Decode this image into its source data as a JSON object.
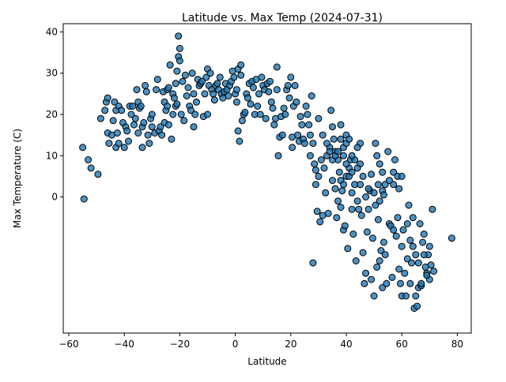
{
  "chart_data": {
    "type": "scatter",
    "title": "Latitude vs. Max Temp (2024-07-31)",
    "xlabel": "Latitude",
    "ylabel": "Max Temperature (C)",
    "xlim": [
      -62,
      85
    ],
    "ylim": [
      -33,
      42
    ],
    "xticks": [
      -60,
      -40,
      -20,
      0,
      20,
      40,
      60,
      80
    ],
    "yticks": [
      0,
      10,
      20,
      30,
      40
    ],
    "grid": false,
    "legend": "none",
    "marker_color": "#1f77b4",
    "marker_edge_color": "#000000",
    "points": [
      [
        -55,
        12
      ],
      [
        -54.5,
        -0.5
      ],
      [
        -53,
        9
      ],
      [
        -52,
        7
      ],
      [
        -49.5,
        5.5
      ],
      [
        -48.5,
        19
      ],
      [
        -47,
        21
      ],
      [
        -46.5,
        23
      ],
      [
        -46,
        24
      ],
      [
        -46,
        15.5
      ],
      [
        -45.5,
        13
      ],
      [
        -44.5,
        15
      ],
      [
        -44,
        18.5
      ],
      [
        -43.5,
        23
      ],
      [
        -43,
        21
      ],
      [
        -43,
        12
      ],
      [
        -42.5,
        15.5
      ],
      [
        -42,
        22
      ],
      [
        -42,
        13
      ],
      [
        -41,
        21
      ],
      [
        -40.5,
        18
      ],
      [
        -40,
        12
      ],
      [
        -39.5,
        17
      ],
      [
        -39,
        16
      ],
      [
        -38.5,
        13.5
      ],
      [
        -38,
        22
      ],
      [
        -37.5,
        20
      ],
      [
        -37,
        22
      ],
      [
        -36.5,
        17.5
      ],
      [
        -36,
        19
      ],
      [
        -35.5,
        26
      ],
      [
        -35,
        23
      ],
      [
        -35,
        15.5
      ],
      [
        -34.5,
        21.5
      ],
      [
        -34,
        22
      ],
      [
        -33.5,
        17
      ],
      [
        -33.5,
        12
      ],
      [
        -33,
        18
      ],
      [
        -32.5,
        27
      ],
      [
        -32,
        25.5
      ],
      [
        -31.5,
        15
      ],
      [
        -31,
        13
      ],
      [
        -30.5,
        19
      ],
      [
        -30,
        17
      ],
      [
        -30,
        20
      ],
      [
        -29,
        15.5
      ],
      [
        -28.5,
        26
      ],
      [
        -28,
        28.5
      ],
      [
        -27.5,
        16
      ],
      [
        -27,
        17
      ],
      [
        -26.5,
        15
      ],
      [
        -26,
        25.5
      ],
      [
        -25.5,
        23
      ],
      [
        -25.5,
        18
      ],
      [
        -25,
        21
      ],
      [
        -24.5,
        22
      ],
      [
        -24.5,
        26
      ],
      [
        -24,
        17.5
      ],
      [
        -24,
        26.5
      ],
      [
        -23.5,
        32
      ],
      [
        -23,
        14
      ],
      [
        -22.5,
        20
      ],
      [
        -22.5,
        25
      ],
      [
        -22,
        24
      ],
      [
        -21.5,
        22
      ],
      [
        -21.5,
        27.5
      ],
      [
        -21,
        22.5
      ],
      [
        -21,
        30.5
      ],
      [
        -20.5,
        34
      ],
      [
        -20.5,
        39
      ],
      [
        -20,
        36
      ],
      [
        -20,
        33
      ],
      [
        -19.5,
        20
      ],
      [
        -19,
        28
      ],
      [
        -18.5,
        18.5
      ],
      [
        -18,
        29.5
      ],
      [
        -17.5,
        24.5
      ],
      [
        -17,
        26.5
      ],
      [
        -16.5,
        22
      ],
      [
        -16,
        21
      ],
      [
        -15.5,
        30
      ],
      [
        -15,
        25
      ],
      [
        -15,
        17
      ],
      [
        -14.5,
        20
      ],
      [
        -14,
        23
      ],
      [
        -13.5,
        28.5
      ],
      [
        -13,
        27
      ],
      [
        -12.5,
        27.5
      ],
      [
        -12,
        28
      ],
      [
        -11.5,
        19.5
      ],
      [
        -11,
        25
      ],
      [
        -10.5,
        29
      ],
      [
        -10,
        31
      ],
      [
        -10,
        20
      ],
      [
        -9.5,
        27
      ],
      [
        -9,
        30
      ],
      [
        -8.5,
        26
      ],
      [
        -8,
        25
      ],
      [
        -7.5,
        23.5
      ],
      [
        -7,
        27
      ],
      [
        -6.5,
        27.5
      ],
      [
        -6,
        26
      ],
      [
        -5.5,
        29
      ],
      [
        -5,
        25
      ],
      [
        -4.5,
        24
      ],
      [
        -4,
        25.5
      ],
      [
        -3.5,
        27.5
      ],
      [
        -3,
        26
      ],
      [
        -2.5,
        24.5
      ],
      [
        -2,
        27
      ],
      [
        -1.5,
        28
      ],
      [
        -1,
        30.5
      ],
      [
        -0.5,
        29
      ],
      [
        0,
        25
      ],
      [
        0.5,
        26
      ],
      [
        0.5,
        23
      ],
      [
        1,
        31
      ],
      [
        1,
        16
      ],
      [
        1.5,
        13.5
      ],
      [
        2,
        32
      ],
      [
        2,
        29.5
      ],
      [
        2.5,
        18.5
      ],
      [
        3,
        20
      ],
      [
        3.5,
        20.5
      ],
      [
        4,
        25
      ],
      [
        4.5,
        24
      ],
      [
        5,
        27.5
      ],
      [
        5.5,
        22.5
      ],
      [
        6,
        28
      ],
      [
        6.5,
        26.5
      ],
      [
        7,
        20
      ],
      [
        7.5,
        28.5
      ],
      [
        8,
        22
      ],
      [
        8.5,
        25
      ],
      [
        9,
        20
      ],
      [
        9.5,
        29
      ],
      [
        10,
        27
      ],
      [
        10.5,
        26
      ],
      [
        11,
        19
      ],
      [
        11.5,
        27.5
      ],
      [
        12,
        25.5
      ],
      [
        12.5,
        28
      ],
      [
        13,
        23
      ],
      [
        13.5,
        21.5
      ],
      [
        14,
        17.5
      ],
      [
        14.5,
        19
      ],
      [
        15,
        26
      ],
      [
        15,
        31.5
      ],
      [
        15.5,
        10
      ],
      [
        16,
        14.5
      ],
      [
        16.5,
        19.5
      ],
      [
        17,
        15
      ],
      [
        17.5,
        21.5
      ],
      [
        18,
        20
      ],
      [
        18.5,
        26
      ],
      [
        19,
        27
      ],
      [
        19.5,
        24
      ],
      [
        20,
        29
      ],
      [
        20.5,
        12
      ],
      [
        20.5,
        14.5
      ],
      [
        21,
        22
      ],
      [
        21.5,
        27
      ],
      [
        22,
        23
      ],
      [
        22.5,
        15
      ],
      [
        23,
        13.5
      ],
      [
        23.5,
        19.5
      ],
      [
        24,
        17.5
      ],
      [
        24.5,
        14
      ],
      [
        25,
        13
      ],
      [
        25.5,
        22
      ],
      [
        26,
        20
      ],
      [
        26.5,
        17.5
      ],
      [
        27,
        15
      ],
      [
        27,
        10
      ],
      [
        27.5,
        24.5
      ],
      [
        28,
        13
      ],
      [
        28,
        -16
      ],
      [
        28.5,
        8
      ],
      [
        29,
        6.5
      ],
      [
        29,
        3
      ],
      [
        29.5,
        -3.5
      ],
      [
        30,
        5
      ],
      [
        30,
        19
      ],
      [
        30.5,
        -6
      ],
      [
        31,
        9
      ],
      [
        31.5,
        15
      ],
      [
        31.5,
        -4.5
      ],
      [
        32,
        7
      ],
      [
        32.5,
        1
      ],
      [
        33,
        10
      ],
      [
        33.5,
        -4
      ],
      [
        34,
        12
      ],
      [
        34.5,
        21
      ],
      [
        35,
        17
      ],
      [
        35.5,
        14
      ],
      [
        36,
        11
      ],
      [
        36.5,
        -5
      ],
      [
        37,
        9
      ],
      [
        37.5,
        6
      ],
      [
        38,
        17.5
      ],
      [
        38,
        -2.5
      ],
      [
        38.5,
        1.5
      ],
      [
        39,
        12
      ],
      [
        39,
        -8
      ],
      [
        39.5,
        -7
      ],
      [
        40,
        5
      ],
      [
        40,
        13
      ],
      [
        40.5,
        -12.5
      ],
      [
        41,
        7
      ],
      [
        41.5,
        9
      ],
      [
        42,
        -3
      ],
      [
        42,
        1
      ],
      [
        42.5,
        -9
      ],
      [
        43,
        3
      ],
      [
        43.5,
        -15.5
      ],
      [
        44,
        -1
      ],
      [
        44.5,
        -3
      ],
      [
        45,
        8
      ],
      [
        45,
        13
      ],
      [
        45.5,
        -4.5
      ],
      [
        46,
        -13.5
      ],
      [
        46.5,
        -21
      ],
      [
        47,
        -18.5
      ],
      [
        47.5,
        -8.5
      ],
      [
        48,
        -3
      ],
      [
        48.5,
        1.5
      ],
      [
        49,
        -20
      ],
      [
        49,
        5.5
      ],
      [
        49.5,
        -10
      ],
      [
        50,
        -24
      ],
      [
        50.5,
        13
      ],
      [
        51,
        -17
      ],
      [
        51,
        10
      ],
      [
        51.5,
        -5.5
      ],
      [
        52,
        -15.5
      ],
      [
        52.5,
        -13
      ],
      [
        53,
        1.5
      ],
      [
        53,
        -22
      ],
      [
        53.5,
        -11
      ],
      [
        54,
        -14
      ],
      [
        54.5,
        -21
      ],
      [
        55,
        11
      ],
      [
        55.5,
        -6.5
      ],
      [
        56,
        -7
      ],
      [
        56.5,
        -19.5
      ],
      [
        57,
        -8
      ],
      [
        57,
        3
      ],
      [
        57.5,
        9
      ],
      [
        58,
        -9.5
      ],
      [
        58.5,
        -5
      ],
      [
        59,
        -17.5
      ],
      [
        59.5,
        -21
      ],
      [
        60,
        -24
      ],
      [
        60.5,
        -8
      ],
      [
        61,
        -18.5
      ],
      [
        61.5,
        -24
      ],
      [
        62,
        -6.5
      ],
      [
        62.5,
        -2
      ],
      [
        63,
        -10.5
      ],
      [
        63.5,
        -16
      ],
      [
        64,
        -5
      ],
      [
        64.5,
        -27
      ],
      [
        65,
        -14
      ],
      [
        65.5,
        -26.5
      ],
      [
        66,
        -22
      ],
      [
        66.5,
        -6.5
      ],
      [
        67,
        -21.5
      ],
      [
        67.5,
        -11
      ],
      [
        68,
        -9
      ],
      [
        68.5,
        -17
      ],
      [
        69,
        -18.5
      ],
      [
        69.5,
        -14
      ],
      [
        70,
        -20
      ],
      [
        70.5,
        -16.5
      ],
      [
        71,
        -3
      ],
      [
        71.5,
        -18
      ],
      [
        78,
        -10
      ],
      [
        50,
        1
      ],
      [
        51.5,
        3
      ],
      [
        52,
        8
      ],
      [
        53,
        6
      ],
      [
        54,
        3
      ],
      [
        55.5,
        4
      ],
      [
        57,
        6
      ],
      [
        58.5,
        5
      ],
      [
        59,
        2
      ],
      [
        60,
        5
      ],
      [
        44,
        7
      ],
      [
        45,
        3
      ],
      [
        46,
        5
      ],
      [
        47,
        0
      ],
      [
        48,
        2
      ],
      [
        50.5,
        -2
      ],
      [
        52,
        -1
      ],
      [
        53.5,
        0.5
      ],
      [
        35,
        4
      ],
      [
        36,
        2
      ],
      [
        37,
        -1
      ],
      [
        38,
        4
      ],
      [
        39,
        3
      ],
      [
        40,
        8
      ],
      [
        41,
        5
      ],
      [
        42,
        6
      ],
      [
        43,
        9
      ],
      [
        44,
        12
      ],
      [
        33,
        13
      ],
      [
        34,
        11
      ],
      [
        35,
        9
      ],
      [
        36,
        10
      ],
      [
        37,
        11
      ],
      [
        38,
        14
      ],
      [
        39,
        10
      ],
      [
        40,
        15
      ],
      [
        41,
        14
      ],
      [
        42,
        10
      ],
      [
        60,
        -12
      ],
      [
        62,
        -15
      ],
      [
        64,
        -12
      ],
      [
        66,
        -16
      ],
      [
        68,
        -14
      ],
      [
        70,
        -12
      ],
      [
        63,
        -21
      ],
      [
        65,
        -24
      ],
      [
        67,
        -21
      ],
      [
        69,
        -19
      ]
    ]
  }
}
